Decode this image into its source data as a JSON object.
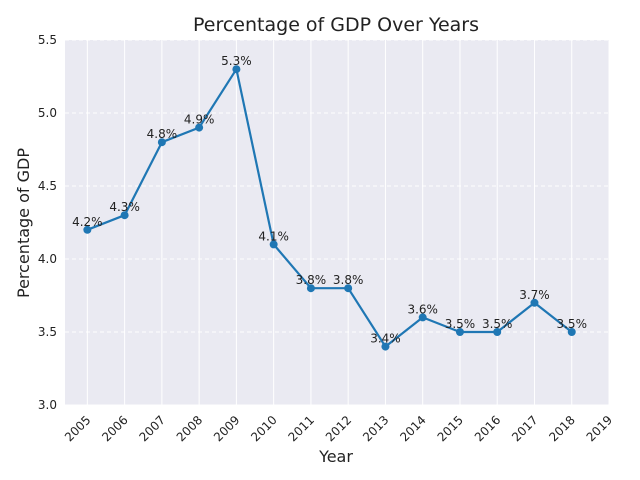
{
  "chart_data": {
    "type": "line",
    "title": "Percentage of GDP Over Years",
    "xlabel": "Year",
    "ylabel": "Percentage of GDP",
    "x": [
      2005,
      2006,
      2007,
      2008,
      2009,
      2010,
      2011,
      2012,
      2013,
      2014,
      2015,
      2016,
      2017,
      2018
    ],
    "xticks": [
      "2005",
      "2006",
      "2007",
      "2008",
      "2009",
      "2010",
      "2011",
      "2012",
      "2013",
      "2014",
      "2015",
      "2016",
      "2017",
      "2018",
      "2019"
    ],
    "yticks": [
      "3.0",
      "3.5",
      "4.0",
      "4.5",
      "5.0",
      "5.5"
    ],
    "series": [
      {
        "name": "Percentage of GDP",
        "values": [
          4.2,
          4.3,
          4.8,
          4.9,
          5.3,
          4.1,
          3.8,
          3.8,
          3.4,
          3.6,
          3.5,
          3.5,
          3.7,
          3.5
        ],
        "labels": [
          "4.2%",
          "4.3%",
          "4.8%",
          "4.9%",
          "5.3%",
          "4.1%",
          "3.8%",
          "3.8%",
          "3.4%",
          "3.6%",
          "3.5%",
          "3.5%",
          "3.7%",
          "3.5%"
        ],
        "color": "#1f77b4"
      }
    ],
    "xlim": [
      2004.4,
      2019
    ],
    "ylim": [
      3.0,
      5.5
    ],
    "grid": true,
    "background_color": "#eaeaf2",
    "grid_color": "#ffffff",
    "text_color": "#222222"
  }
}
